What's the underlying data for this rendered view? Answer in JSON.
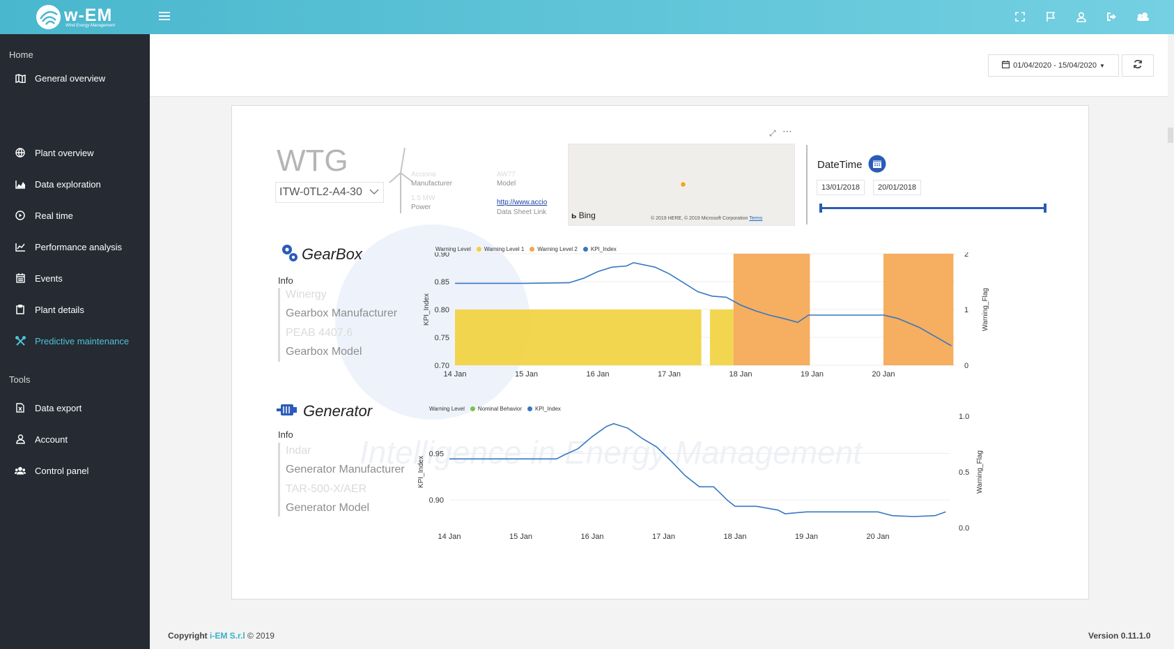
{
  "app": {
    "logo_text": "w-EM",
    "logo_subtitle": "Wind Energy Management"
  },
  "sidebar": {
    "sections": [
      {
        "label": "Home"
      },
      {
        "label": "Tools"
      }
    ],
    "items": [
      {
        "label": "General overview",
        "icon": "map-icon"
      },
      {
        "label": "Plant overview",
        "icon": "globe-icon"
      },
      {
        "label": "Data exploration",
        "icon": "area-chart-icon"
      },
      {
        "label": "Real time",
        "icon": "play-circle-icon"
      },
      {
        "label": "Performance analysis",
        "icon": "line-chart-icon"
      },
      {
        "label": "Events",
        "icon": "calendar-icon"
      },
      {
        "label": "Plant details",
        "icon": "clipboard-icon"
      },
      {
        "label": "Predictive maintenance",
        "icon": "wrench-icon",
        "active": true
      },
      {
        "label": "Data export",
        "icon": "file-excel-icon"
      },
      {
        "label": "Account",
        "icon": "user-icon"
      },
      {
        "label": "Control panel",
        "icon": "users-icon"
      }
    ]
  },
  "header": {
    "date_range": "01/04/2020 - 15/04/2020"
  },
  "report": {
    "wtg_title": "WTG",
    "wtg_selected": "ITW-0TL2-A4-30",
    "turbine": {
      "manufacturer_value": "Acciona",
      "manufacturer_label": "Manufacturer",
      "model_value": "AW77",
      "model_label": "Model",
      "power_value": "1.5 MW",
      "power_label": "Power",
      "datasheet_value": "http://www.accio",
      "datasheet_label": "Data Sheet Link"
    },
    "map": {
      "provider": "Bing",
      "copyright": "© 2019 HERE, © 2019 Microsoft Corporation",
      "terms": "Terms"
    },
    "datetime": {
      "title": "DateTime",
      "start": "13/01/2018",
      "end": "20/01/2018"
    },
    "gearbox": {
      "title": "GearBox",
      "info_label": "Info",
      "manufacturer_value": "Winergy",
      "manufacturer_label": "Gearbox Manufacturer",
      "model_value": "PEAB 4407.6",
      "model_label": "Gearbox Model",
      "legend_title": "Warning Level",
      "legend": [
        {
          "name": "Warning Level 1",
          "color": "#f2d13c"
        },
        {
          "name": "Warning Level 2",
          "color": "#f5a54f"
        },
        {
          "name": "KPI_Index",
          "color": "#3577c2"
        }
      ]
    },
    "generator": {
      "title": "Generator",
      "info_label": "Info",
      "manufacturer_value": "Indar",
      "manufacturer_label": "Generator Manufacturer",
      "model_value": "TAR-500-X/AER",
      "model_label": "Generator Model",
      "legend_title": "Warning Level",
      "legend": [
        {
          "name": "Nominal Behavior",
          "color": "#7cc050"
        },
        {
          "name": "KPI_Index",
          "color": "#3577c2"
        }
      ]
    },
    "watermark": "Intelligence in Energy Management"
  },
  "chart_data": [
    {
      "type": "line",
      "title": "GearBox",
      "x": [
        "14 Jan",
        "15 Jan",
        "16 Jan",
        "17 Jan",
        "18 Jan",
        "19 Jan",
        "20 Jan"
      ],
      "ylabel": "KPI_Index",
      "y2label": "Warning_Flag",
      "ylim": [
        0.7,
        0.9
      ],
      "y2lim": [
        0,
        2
      ],
      "yticks": [
        "0.90",
        "0.85",
        "0.80",
        "0.75",
        "0.70"
      ],
      "y2ticks": [
        "2",
        "1",
        "0"
      ],
      "series": [
        {
          "name": "KPI_Index",
          "kind": "line",
          "axis": "left",
          "points": [
            [
              0,
              0.847
            ],
            [
              1,
              0.847
            ],
            [
              1.6,
              0.848
            ],
            [
              1.8,
              0.856
            ],
            [
              2.0,
              0.868
            ],
            [
              2.2,
              0.876
            ],
            [
              2.4,
              0.878
            ],
            [
              2.5,
              0.884
            ],
            [
              2.8,
              0.876
            ],
            [
              3.0,
              0.864
            ],
            [
              3.2,
              0.848
            ],
            [
              3.4,
              0.832
            ],
            [
              3.6,
              0.824
            ],
            [
              3.8,
              0.822
            ],
            [
              4.0,
              0.808
            ],
            [
              4.2,
              0.798
            ],
            [
              4.4,
              0.79
            ],
            [
              4.6,
              0.784
            ],
            [
              4.8,
              0.777
            ],
            [
              4.95,
              0.79
            ],
            [
              5.5,
              0.79
            ],
            [
              6.0,
              0.79
            ],
            [
              6.2,
              0.784
            ],
            [
              6.5,
              0.768
            ],
            [
              6.8,
              0.746
            ],
            [
              6.95,
              0.735
            ]
          ]
        },
        {
          "name": "Warning Level 1",
          "kind": "bar",
          "axis": "right",
          "value": 1,
          "ranges": [
            [
              0,
              3.45
            ],
            [
              3.57,
              3.9
            ]
          ]
        },
        {
          "name": "Warning Level 2",
          "kind": "bar",
          "axis": "right",
          "value": 2,
          "ranges": [
            [
              3.9,
              4.97
            ],
            [
              6.0,
              6.98
            ]
          ]
        }
      ]
    },
    {
      "type": "line",
      "title": "Generator",
      "x": [
        "14 Jan",
        "15 Jan",
        "16 Jan",
        "17 Jan",
        "18 Jan",
        "19 Jan",
        "20 Jan"
      ],
      "ylabel": "KPI_Index",
      "y2label": "Warning_Flag",
      "ylim": [
        0.87,
        0.99
      ],
      "y2lim": [
        0.0,
        1.0
      ],
      "yticks": [
        "0.95",
        "0.90"
      ],
      "y2ticks": [
        "1.0",
        "0.5",
        "0.0"
      ],
      "series": [
        {
          "name": "KPI_Index",
          "kind": "line",
          "axis": "left",
          "points": [
            [
              0,
              0.944
            ],
            [
              1.5,
              0.944
            ],
            [
              1.6,
              0.948
            ],
            [
              1.8,
              0.955
            ],
            [
              2.0,
              0.968
            ],
            [
              2.2,
              0.979
            ],
            [
              2.3,
              0.982
            ],
            [
              2.5,
              0.977
            ],
            [
              2.7,
              0.966
            ],
            [
              2.9,
              0.957
            ],
            [
              3.1,
              0.942
            ],
            [
              3.3,
              0.926
            ],
            [
              3.5,
              0.914
            ],
            [
              3.7,
              0.914
            ],
            [
              3.9,
              0.899
            ],
            [
              4.0,
              0.893
            ],
            [
              4.3,
              0.893
            ],
            [
              4.6,
              0.889
            ],
            [
              4.7,
              0.885
            ],
            [
              5.0,
              0.887
            ],
            [
              5.5,
              0.887
            ],
            [
              6.0,
              0.887
            ],
            [
              6.2,
              0.883
            ],
            [
              6.5,
              0.882
            ],
            [
              6.8,
              0.883
            ],
            [
              6.95,
              0.887
            ]
          ]
        }
      ]
    }
  ],
  "footer": {
    "copyright_prefix": "Copyright",
    "company": "i-EM S.r.l",
    "year": "© 2019",
    "version": "Version 0.11.1.0"
  }
}
